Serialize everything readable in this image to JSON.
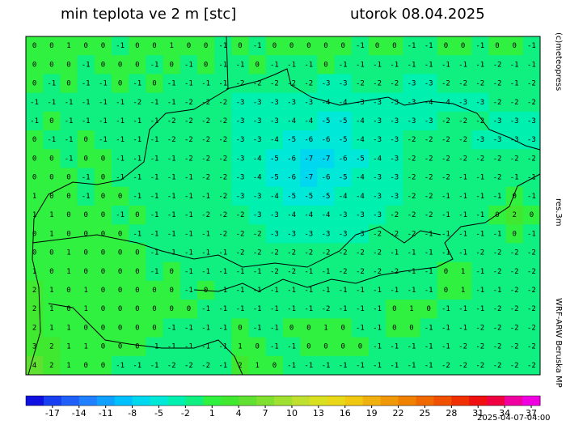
{
  "header": {
    "title": "min teplota ve 2 m [stc]",
    "date": "utorok 08.04.2025"
  },
  "side": {
    "copyright": "(c)meteopress",
    "resolution": "res.3m",
    "model": "WRF-ARW Beruska MP"
  },
  "footer": {
    "timestamp": "2025-04-07-04:00"
  },
  "grid": {
    "rows": [
      [
        0,
        0,
        1,
        0,
        0,
        -1,
        0,
        0,
        1,
        0,
        0,
        -1,
        0,
        -1,
        0,
        0,
        0,
        0,
        0,
        -1,
        0,
        0,
        -1,
        -1,
        0,
        0,
        -1,
        0,
        0,
        -1
      ],
      [
        0,
        0,
        0,
        -1,
        0,
        0,
        0,
        -1,
        0,
        -1,
        0,
        -1,
        -1,
        0,
        -1,
        -1,
        -1,
        0,
        -1,
        -1,
        -1,
        -1,
        -1,
        -1,
        -1,
        -1,
        -1,
        -2,
        -1,
        -1
      ],
      [
        0,
        -1,
        0,
        -1,
        -1,
        0,
        -1,
        0,
        -1,
        -1,
        -1,
        -1,
        -2,
        -2,
        -2,
        -2,
        -2,
        -3,
        -3,
        -2,
        -2,
        -2,
        -3,
        -3,
        -2,
        -2,
        -2,
        -2,
        -1,
        -2
      ],
      [
        -1,
        -1,
        -1,
        -1,
        -1,
        -1,
        -2,
        -1,
        -1,
        -2,
        -2,
        -2,
        -3,
        -3,
        -3,
        -3,
        -3,
        -4,
        -4,
        -3,
        -3,
        -3,
        -3,
        -4,
        -4,
        -3,
        -3,
        -2,
        -2,
        -2
      ],
      [
        -1,
        0,
        -1,
        -1,
        -1,
        -1,
        -1,
        -1,
        -2,
        -2,
        -2,
        -2,
        -3,
        -3,
        -3,
        -4,
        -4,
        -5,
        -5,
        -4,
        -3,
        -3,
        -3,
        -3,
        -2,
        -2,
        -2,
        -3,
        -3,
        -3
      ],
      [
        0,
        -1,
        -1,
        0,
        -1,
        -1,
        -1,
        -1,
        -2,
        -2,
        -2,
        -2,
        -3,
        -3,
        -4,
        -5,
        -6,
        -6,
        -5,
        -4,
        -3,
        -3,
        -2,
        -2,
        -2,
        -2,
        -3,
        -3,
        -3,
        -3
      ],
      [
        0,
        0,
        -1,
        0,
        0,
        -1,
        -1,
        -1,
        -1,
        -2,
        -2,
        -2,
        -3,
        -4,
        -5,
        -6,
        -7,
        -7,
        -6,
        -5,
        -4,
        -3,
        -2,
        -2,
        -2,
        -2,
        -2,
        -2,
        -2,
        -2
      ],
      [
        0,
        0,
        0,
        -1,
        0,
        -1,
        -1,
        -1,
        -1,
        -1,
        -2,
        -2,
        -3,
        -4,
        -5,
        -6,
        -7,
        -6,
        -5,
        -4,
        -3,
        -3,
        -2,
        -2,
        -2,
        -1,
        -1,
        -2,
        -1,
        -1
      ],
      [
        1,
        0,
        0,
        -1,
        0,
        0,
        -1,
        -1,
        -1,
        -1,
        -1,
        -2,
        -3,
        -3,
        -4,
        -5,
        -5,
        -5,
        -4,
        -4,
        -3,
        -3,
        -2,
        -2,
        -1,
        -1,
        -1,
        -1,
        0,
        -1
      ],
      [
        1,
        1,
        0,
        0,
        0,
        -1,
        0,
        -1,
        -1,
        -1,
        -2,
        -2,
        -2,
        -3,
        -3,
        -4,
        -4,
        -4,
        -3,
        -3,
        -3,
        -2,
        -2,
        -2,
        -1,
        -1,
        -1,
        0,
        2,
        0
      ],
      [
        0,
        1,
        0,
        0,
        0,
        0,
        -1,
        -1,
        -1,
        -1,
        -1,
        -2,
        -2,
        -2,
        -3,
        -3,
        -3,
        -3,
        -3,
        -3,
        -2,
        -2,
        -2,
        -1,
        -1,
        -1,
        -1,
        -1,
        0,
        -1
      ],
      [
        0,
        0,
        1,
        0,
        0,
        0,
        0,
        -1,
        -1,
        -1,
        -1,
        -1,
        -2,
        -2,
        -2,
        -2,
        -2,
        -2,
        -2,
        -2,
        -2,
        -1,
        -1,
        -1,
        -1,
        -1,
        -2,
        -2,
        -2,
        -2
      ],
      [
        1,
        0,
        1,
        0,
        0,
        0,
        0,
        -1,
        0,
        -1,
        -1,
        -1,
        -1,
        -1,
        -2,
        -2,
        -1,
        -1,
        -2,
        -2,
        -2,
        -2,
        -1,
        -1,
        0,
        1,
        -1,
        -2,
        -2,
        -2
      ],
      [
        2,
        1,
        0,
        1,
        0,
        0,
        0,
        0,
        0,
        -1,
        0,
        -1,
        -1,
        -1,
        -1,
        -1,
        -1,
        -1,
        -1,
        -1,
        -1,
        -1,
        -1,
        -1,
        0,
        1,
        -1,
        -1,
        -2,
        -2
      ],
      [
        2,
        1,
        0,
        1,
        0,
        0,
        0,
        0,
        0,
        0,
        -1,
        -1,
        -1,
        -1,
        -1,
        -1,
        -1,
        -2,
        -1,
        -1,
        -1,
        0,
        1,
        0,
        -1,
        -1,
        -1,
        -2,
        -2,
        -2
      ],
      [
        2,
        1,
        1,
        0,
        0,
        0,
        0,
        0,
        -1,
        -1,
        -1,
        -1,
        0,
        -1,
        -1,
        0,
        0,
        1,
        0,
        -1,
        -1,
        0,
        0,
        -1,
        -1,
        -1,
        -2,
        -2,
        -2,
        -2
      ],
      [
        3,
        2,
        1,
        1,
        0,
        0,
        0,
        -1,
        -1,
        -1,
        -1,
        -1,
        1,
        0,
        -1,
        -1,
        0,
        0,
        0,
        0,
        -1,
        -1,
        -1,
        -1,
        -1,
        -2,
        -2,
        -2,
        -2,
        -2
      ],
      [
        4,
        2,
        1,
        0,
        0,
        -1,
        -1,
        -1,
        -2,
        -2,
        -2,
        -1,
        2,
        1,
        0,
        -1,
        -1,
        -1,
        -1,
        -1,
        -1,
        -1,
        -1,
        -1,
        -2,
        -2,
        -2,
        -2,
        -2,
        -2
      ]
    ]
  },
  "colorbar": {
    "lim": [
      -20,
      38
    ],
    "ticks": [
      -17,
      -14,
      -11,
      -8,
      -5,
      -2,
      1,
      4,
      7,
      10,
      13,
      16,
      19,
      22,
      25,
      28,
      31,
      34,
      37
    ],
    "colors": [
      "#1010e0",
      "#1840f0",
      "#2060f8",
      "#2080ff",
      "#10a0ff",
      "#00c0ff",
      "#00d8f0",
      "#00e8d8",
      "#00f0b0",
      "#10f080",
      "#30f040",
      "#40e830",
      "#60e030",
      "#80e030",
      "#a0e030",
      "#c0e030",
      "#d8e020",
      "#e8d818",
      "#f0c810",
      "#f0b010",
      "#f09808",
      "#f08000",
      "#f06800",
      "#f05000",
      "#f03000",
      "#f01010",
      "#f00040",
      "#f000a0",
      "#f000e0"
    ]
  }
}
